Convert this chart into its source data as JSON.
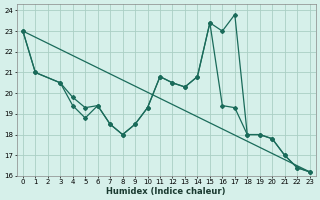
{
  "bg_color": "#d6f0ea",
  "grid_color": "#aacfc4",
  "line_color": "#1a6b5a",
  "xlabel": "Humidex (Indice chaleur)",
  "xlim": [
    -0.5,
    23.5
  ],
  "ylim": [
    16,
    24.3
  ],
  "xticks": [
    0,
    1,
    2,
    3,
    4,
    5,
    6,
    7,
    8,
    9,
    10,
    11,
    12,
    13,
    14,
    15,
    16,
    17,
    18,
    19,
    20,
    21,
    22,
    23
  ],
  "yticks": [
    16,
    17,
    18,
    19,
    20,
    21,
    22,
    23,
    24
  ],
  "curve1_x": [
    0,
    1,
    3,
    4,
    5,
    6,
    7,
    8,
    9,
    10,
    11,
    12,
    13,
    14,
    15,
    16,
    17,
    18,
    19,
    20,
    21,
    22,
    23
  ],
  "curve1_y": [
    23.0,
    21.0,
    20.5,
    19.4,
    18.8,
    19.4,
    18.5,
    18.0,
    18.5,
    19.3,
    20.8,
    20.5,
    20.3,
    20.8,
    23.4,
    19.4,
    19.3,
    18.0,
    18.0,
    17.8,
    17.0,
    16.4,
    16.2
  ],
  "curve2_x": [
    0,
    1,
    3,
    4,
    5,
    6,
    7,
    8,
    9,
    10,
    11,
    12,
    13,
    14,
    15,
    16,
    17,
    18,
    19,
    20,
    21,
    22,
    23
  ],
  "curve2_y": [
    23.0,
    21.0,
    20.5,
    19.8,
    19.3,
    19.4,
    18.5,
    18.0,
    18.5,
    19.3,
    20.8,
    20.5,
    20.3,
    20.8,
    23.4,
    23.0,
    23.8,
    18.0,
    18.0,
    17.8,
    17.0,
    16.4,
    16.2
  ],
  "trend_x": [
    0,
    23
  ],
  "trend_y": [
    23.0,
    16.2
  ]
}
